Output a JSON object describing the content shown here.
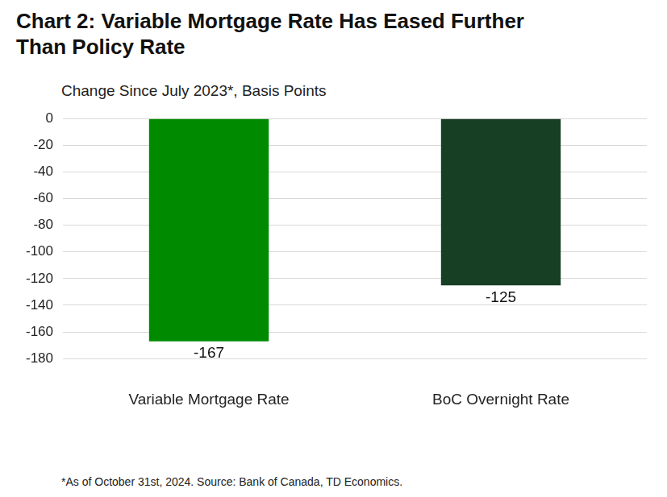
{
  "chart_data": {
    "type": "bar",
    "title": "Chart 2: Variable Mortgage Rate Has Eased Further Than Policy Rate",
    "subtitle": "Change Since July 2023*, Basis Points",
    "footnote": "*As of October 31st, 2024. Source: Bank of Canada, TD Economics.",
    "categories": [
      "Variable Mortgage Rate",
      "BoC Overnight Rate"
    ],
    "values": [
      -167,
      -125
    ],
    "colors": [
      "#008a00",
      "#173f24"
    ],
    "ylim": [
      -180,
      0
    ],
    "yticks": [
      -180,
      -160,
      -140,
      -120,
      -100,
      -80,
      -60,
      -40,
      -20,
      0
    ],
    "grid": true,
    "data_labels": true
  }
}
